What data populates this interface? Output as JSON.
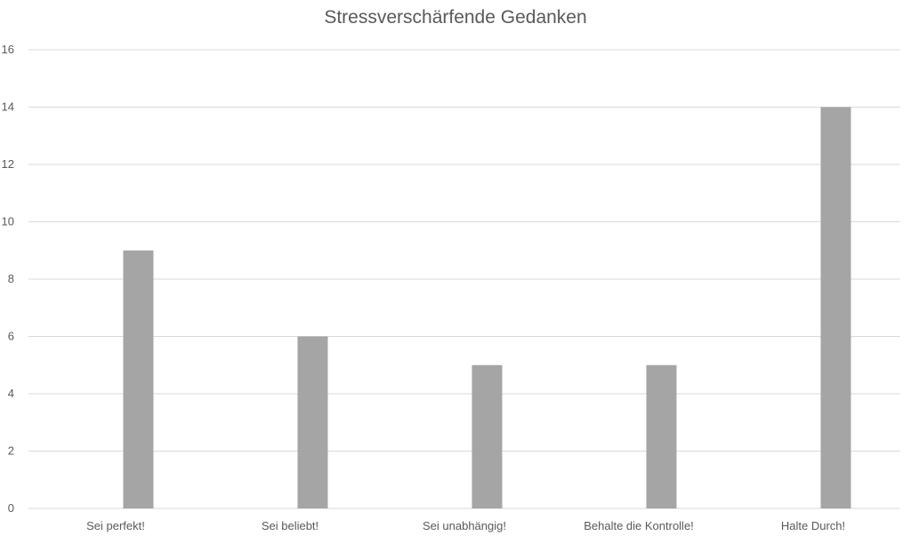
{
  "chart_data": {
    "type": "bar",
    "title": "Stressverschärfende Gedanken",
    "categories": [
      "Sei perfekt!",
      "Sei beliebt!",
      "Sei unabhängig!",
      "Behalte die Kontrolle!",
      "Halte Durch!"
    ],
    "values": [
      9,
      6,
      5,
      5,
      14
    ],
    "ylim": [
      0,
      16
    ],
    "yticks": [
      0,
      2,
      4,
      6,
      8,
      10,
      12,
      14,
      16
    ],
    "grid": true,
    "legend": "none",
    "bar_color": "#a5a5a5",
    "grid_color": "#d9d9d9"
  }
}
